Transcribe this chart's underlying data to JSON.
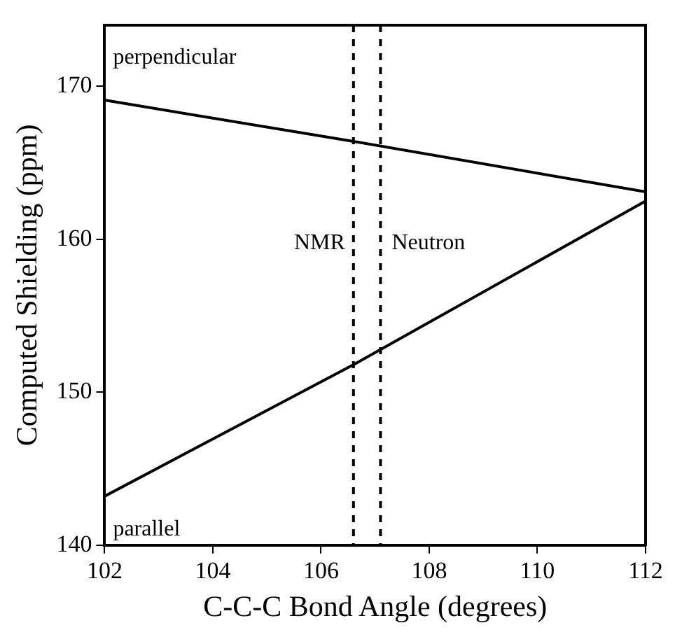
{
  "chart_data": {
    "type": "line",
    "xlabel": "C-C-C Bond Angle (degrees)",
    "ylabel": "Computed Shielding (ppm)",
    "x": [
      102,
      106.6,
      112
    ],
    "series": [
      {
        "name": "perpendicular",
        "color": "#000000",
        "values": [
          169.1,
          166.4,
          163.1
        ]
      },
      {
        "name": "parallel",
        "color": "#000000",
        "values": [
          143.2,
          151.8,
          162.5
        ]
      }
    ],
    "xlim": [
      102,
      112
    ],
    "xticks": [
      102,
      104,
      106,
      108,
      110,
      112
    ],
    "ylim": [
      140,
      174
    ],
    "yticks": [
      140,
      150,
      160,
      170
    ],
    "ref_lines": [
      {
        "axis": "x",
        "value": 106.6,
        "label": "NMR",
        "line_style": "dashed",
        "color": "#000000"
      },
      {
        "axis": "x",
        "value": 107.1,
        "label": "Neutron",
        "line_style": "dashed",
        "color": "#000000"
      }
    ],
    "grid": false,
    "legend": false,
    "marker": "none",
    "line_style": "solid"
  }
}
